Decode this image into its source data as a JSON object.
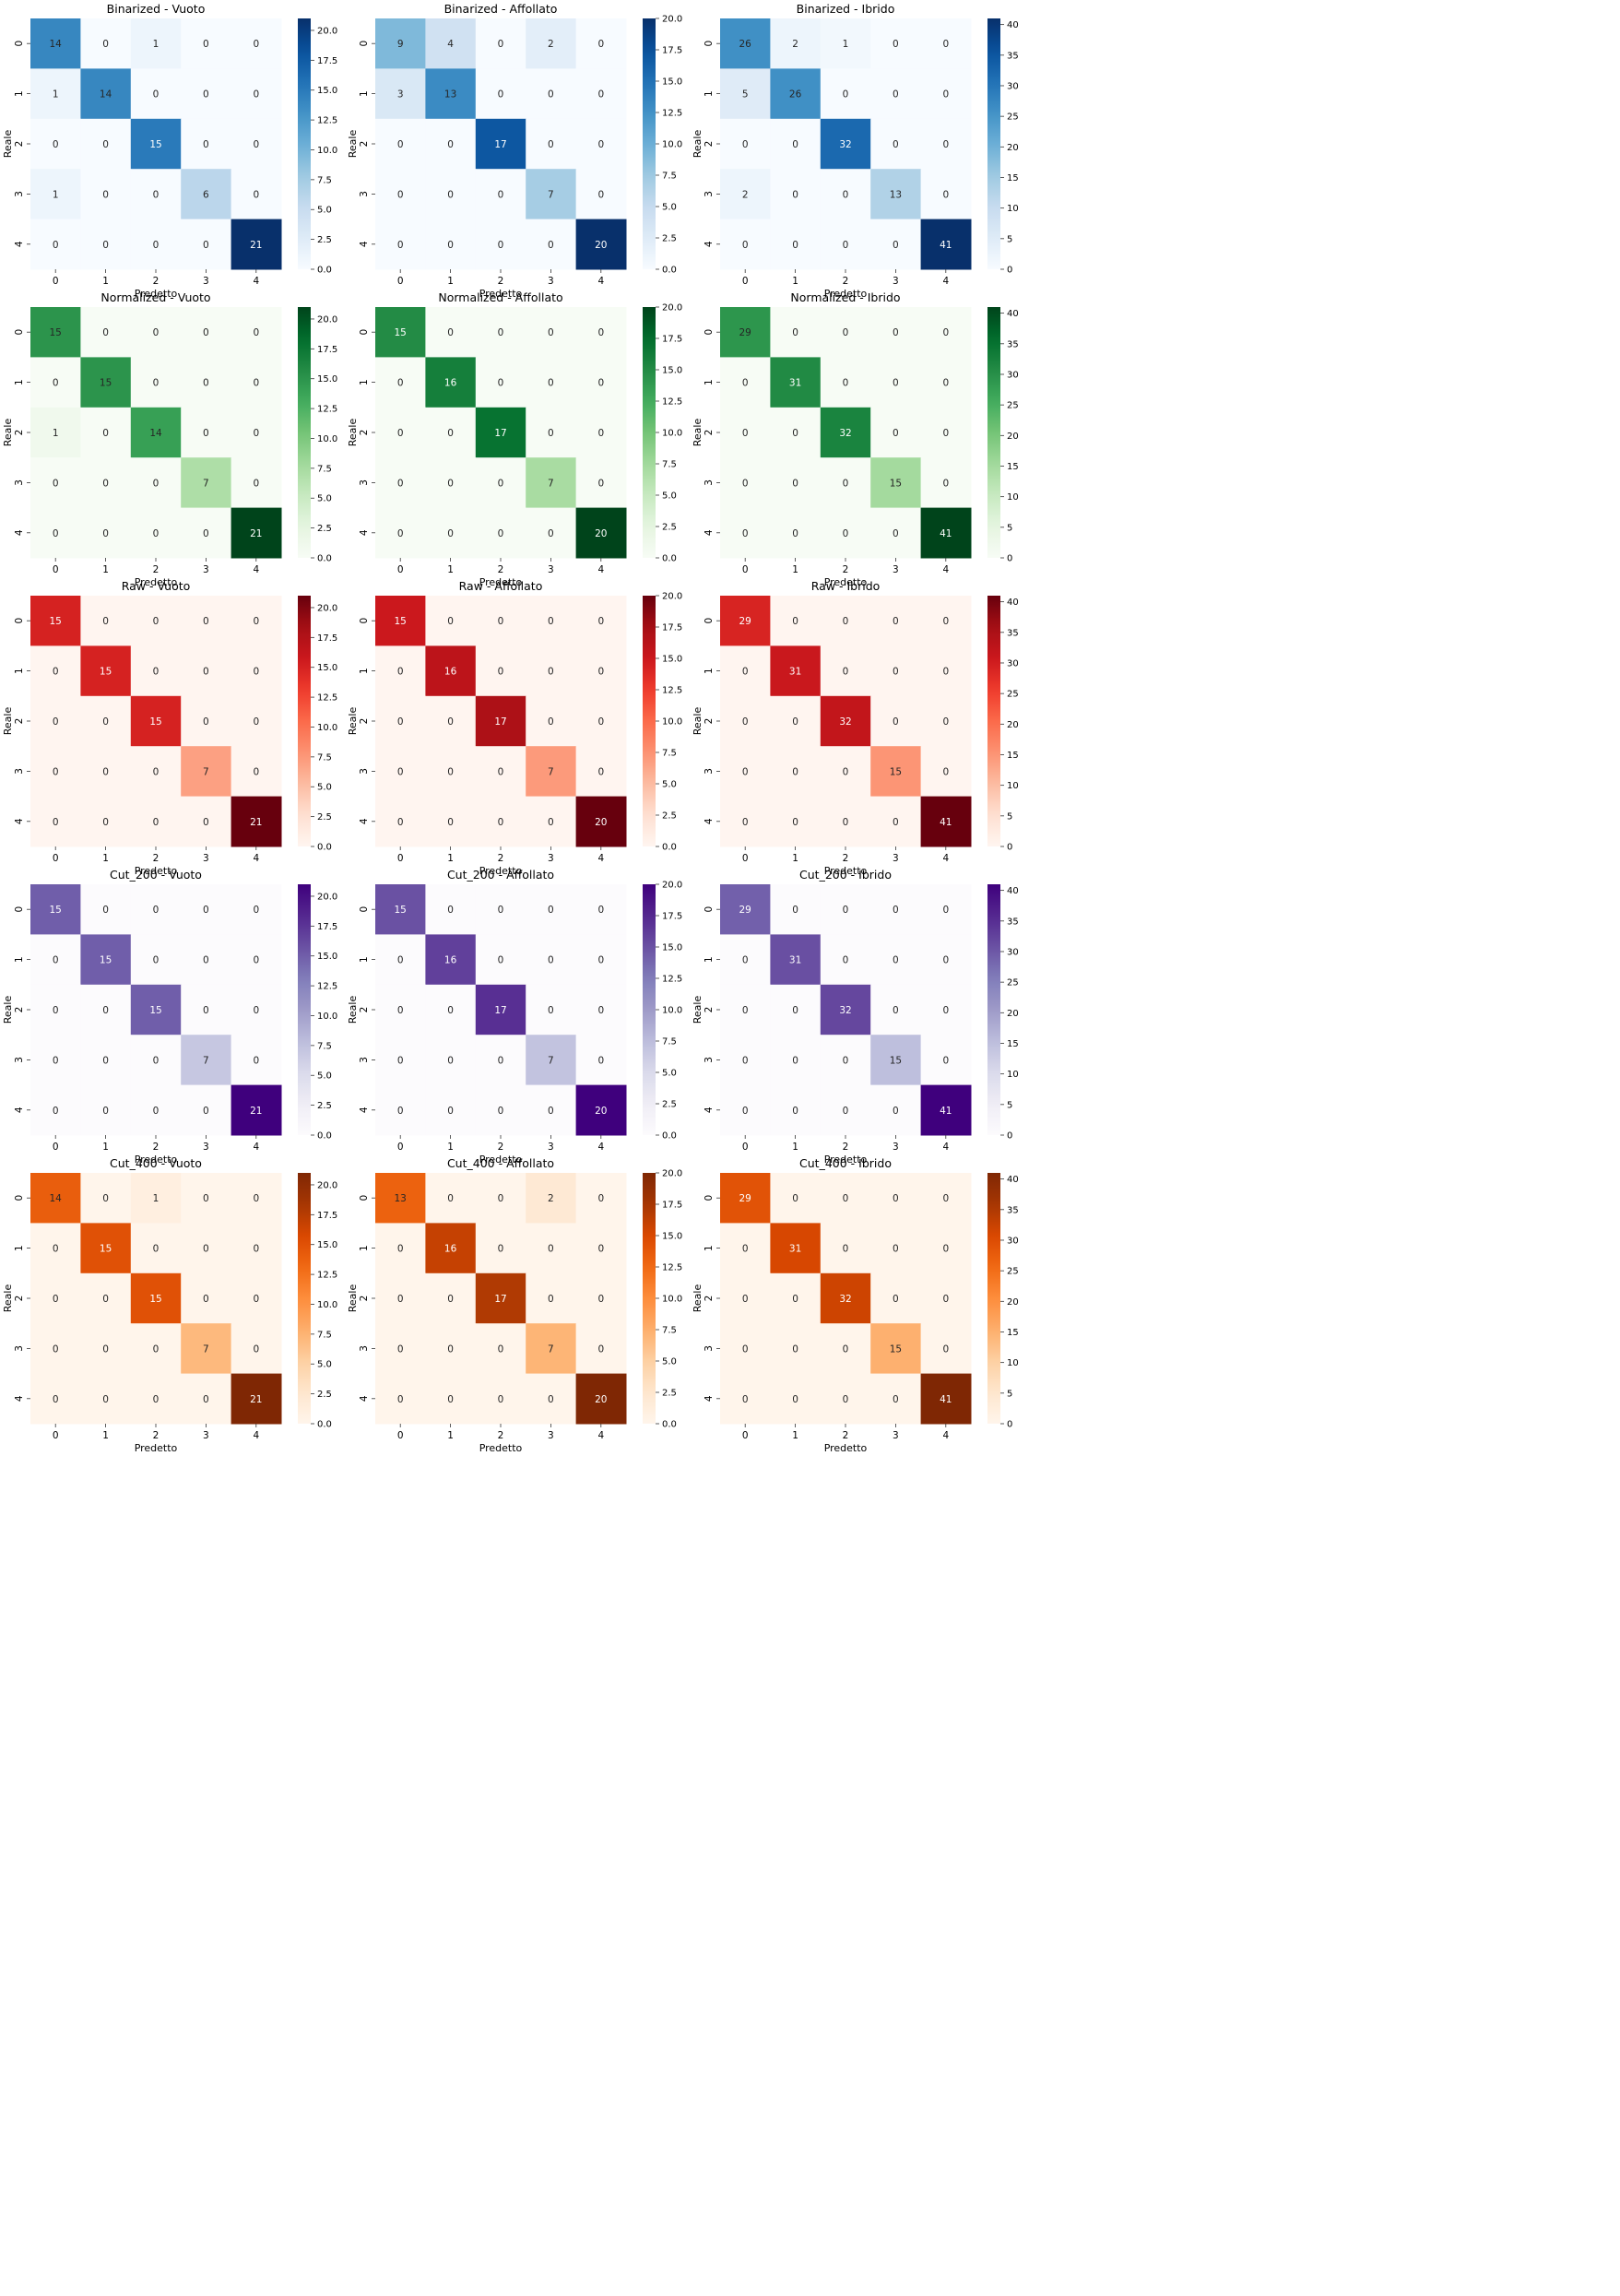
{
  "figure": {
    "xlabel": "Predetto",
    "ylabel": "Reale",
    "class_labels": [
      "0",
      "1",
      "2",
      "3",
      "4"
    ]
  },
  "chart_data": [
    {
      "type": "heatmap",
      "title": "Binarized - Vuoto",
      "colormap": "Blues",
      "vmin": 0,
      "vmax": 21,
      "cbar_ticks": [
        "0.0",
        "2.5",
        "5.0",
        "7.5",
        "10.0",
        "12.5",
        "15.0",
        "17.5",
        "20.0"
      ],
      "matrix": [
        [
          14,
          0,
          1,
          0,
          0
        ],
        [
          1,
          14,
          0,
          0,
          0
        ],
        [
          0,
          0,
          15,
          0,
          0
        ],
        [
          1,
          0,
          0,
          6,
          0
        ],
        [
          0,
          0,
          0,
          0,
          21
        ]
      ]
    },
    {
      "type": "heatmap",
      "title": "Binarized - Affollato",
      "colormap": "Blues",
      "vmin": 0,
      "vmax": 20,
      "cbar_ticks": [
        "0.0",
        "2.5",
        "5.0",
        "7.5",
        "10.0",
        "12.5",
        "15.0",
        "17.5",
        "20.0"
      ],
      "matrix": [
        [
          9,
          4,
          0,
          2,
          0
        ],
        [
          3,
          13,
          0,
          0,
          0
        ],
        [
          0,
          0,
          17,
          0,
          0
        ],
        [
          0,
          0,
          0,
          7,
          0
        ],
        [
          0,
          0,
          0,
          0,
          20
        ]
      ]
    },
    {
      "type": "heatmap",
      "title": "Binarized - Ibrido",
      "colormap": "Blues",
      "vmin": 0,
      "vmax": 41,
      "cbar_ticks": [
        "0",
        "5",
        "10",
        "15",
        "20",
        "25",
        "30",
        "35",
        "40"
      ],
      "matrix": [
        [
          26,
          2,
          1,
          0,
          0
        ],
        [
          5,
          26,
          0,
          0,
          0
        ],
        [
          0,
          0,
          32,
          0,
          0
        ],
        [
          2,
          0,
          0,
          13,
          0
        ],
        [
          0,
          0,
          0,
          0,
          41
        ]
      ]
    },
    {
      "type": "heatmap",
      "title": "Normalized - Vuoto",
      "colormap": "Greens",
      "vmin": 0,
      "vmax": 21,
      "cbar_ticks": [
        "0.0",
        "2.5",
        "5.0",
        "7.5",
        "10.0",
        "12.5",
        "15.0",
        "17.5",
        "20.0"
      ],
      "matrix": [
        [
          15,
          0,
          0,
          0,
          0
        ],
        [
          0,
          15,
          0,
          0,
          0
        ],
        [
          1,
          0,
          14,
          0,
          0
        ],
        [
          0,
          0,
          0,
          7,
          0
        ],
        [
          0,
          0,
          0,
          0,
          21
        ]
      ]
    },
    {
      "type": "heatmap",
      "title": "Normalized - Affollato",
      "colormap": "Greens",
      "vmin": 0,
      "vmax": 20,
      "cbar_ticks": [
        "0.0",
        "2.5",
        "5.0",
        "7.5",
        "10.0",
        "12.5",
        "15.0",
        "17.5",
        "20.0"
      ],
      "matrix": [
        [
          15,
          0,
          0,
          0,
          0
        ],
        [
          0,
          16,
          0,
          0,
          0
        ],
        [
          0,
          0,
          17,
          0,
          0
        ],
        [
          0,
          0,
          0,
          7,
          0
        ],
        [
          0,
          0,
          0,
          0,
          20
        ]
      ]
    },
    {
      "type": "heatmap",
      "title": "Normalized - Ibrido",
      "colormap": "Greens",
      "vmin": 0,
      "vmax": 41,
      "cbar_ticks": [
        "0",
        "5",
        "10",
        "15",
        "20",
        "25",
        "30",
        "35",
        "40"
      ],
      "matrix": [
        [
          29,
          0,
          0,
          0,
          0
        ],
        [
          0,
          31,
          0,
          0,
          0
        ],
        [
          0,
          0,
          32,
          0,
          0
        ],
        [
          0,
          0,
          0,
          15,
          0
        ],
        [
          0,
          0,
          0,
          0,
          41
        ]
      ]
    },
    {
      "type": "heatmap",
      "title": "Raw - Vuoto",
      "colormap": "Reds",
      "vmin": 0,
      "vmax": 21,
      "cbar_ticks": [
        "0.0",
        "2.5",
        "5.0",
        "7.5",
        "10.0",
        "12.5",
        "15.0",
        "17.5",
        "20.0"
      ],
      "matrix": [
        [
          15,
          0,
          0,
          0,
          0
        ],
        [
          0,
          15,
          0,
          0,
          0
        ],
        [
          0,
          0,
          15,
          0,
          0
        ],
        [
          0,
          0,
          0,
          7,
          0
        ],
        [
          0,
          0,
          0,
          0,
          21
        ]
      ]
    },
    {
      "type": "heatmap",
      "title": "Raw - Affollato",
      "colormap": "Reds",
      "vmin": 0,
      "vmax": 20,
      "cbar_ticks": [
        "0.0",
        "2.5",
        "5.0",
        "7.5",
        "10.0",
        "12.5",
        "15.0",
        "17.5",
        "20.0"
      ],
      "matrix": [
        [
          15,
          0,
          0,
          0,
          0
        ],
        [
          0,
          16,
          0,
          0,
          0
        ],
        [
          0,
          0,
          17,
          0,
          0
        ],
        [
          0,
          0,
          0,
          7,
          0
        ],
        [
          0,
          0,
          0,
          0,
          20
        ]
      ]
    },
    {
      "type": "heatmap",
      "title": "Raw - Ibrido",
      "colormap": "Reds",
      "vmin": 0,
      "vmax": 41,
      "cbar_ticks": [
        "0",
        "5",
        "10",
        "15",
        "20",
        "25",
        "30",
        "35",
        "40"
      ],
      "matrix": [
        [
          29,
          0,
          0,
          0,
          0
        ],
        [
          0,
          31,
          0,
          0,
          0
        ],
        [
          0,
          0,
          32,
          0,
          0
        ],
        [
          0,
          0,
          0,
          15,
          0
        ],
        [
          0,
          0,
          0,
          0,
          41
        ]
      ]
    },
    {
      "type": "heatmap",
      "title": "Cut_200 - Vuoto",
      "colormap": "Purples",
      "vmin": 0,
      "vmax": 21,
      "cbar_ticks": [
        "0.0",
        "2.5",
        "5.0",
        "7.5",
        "10.0",
        "12.5",
        "15.0",
        "17.5",
        "20.0"
      ],
      "matrix": [
        [
          15,
          0,
          0,
          0,
          0
        ],
        [
          0,
          15,
          0,
          0,
          0
        ],
        [
          0,
          0,
          15,
          0,
          0
        ],
        [
          0,
          0,
          0,
          7,
          0
        ],
        [
          0,
          0,
          0,
          0,
          21
        ]
      ]
    },
    {
      "type": "heatmap",
      "title": "Cut_200 - Affollato",
      "colormap": "Purples",
      "vmin": 0,
      "vmax": 20,
      "cbar_ticks": [
        "0.0",
        "2.5",
        "5.0",
        "7.5",
        "10.0",
        "12.5",
        "15.0",
        "17.5",
        "20.0"
      ],
      "matrix": [
        [
          15,
          0,
          0,
          0,
          0
        ],
        [
          0,
          16,
          0,
          0,
          0
        ],
        [
          0,
          0,
          17,
          0,
          0
        ],
        [
          0,
          0,
          0,
          7,
          0
        ],
        [
          0,
          0,
          0,
          0,
          20
        ]
      ]
    },
    {
      "type": "heatmap",
      "title": "Cut_200 - Ibrido",
      "colormap": "Purples",
      "vmin": 0,
      "vmax": 41,
      "cbar_ticks": [
        "0",
        "5",
        "10",
        "15",
        "20",
        "25",
        "30",
        "35",
        "40"
      ],
      "matrix": [
        [
          29,
          0,
          0,
          0,
          0
        ],
        [
          0,
          31,
          0,
          0,
          0
        ],
        [
          0,
          0,
          32,
          0,
          0
        ],
        [
          0,
          0,
          0,
          15,
          0
        ],
        [
          0,
          0,
          0,
          0,
          41
        ]
      ]
    },
    {
      "type": "heatmap",
      "title": "Cut_400 - Vuoto",
      "colormap": "Oranges",
      "vmin": 0,
      "vmax": 21,
      "cbar_ticks": [
        "0.0",
        "2.5",
        "5.0",
        "7.5",
        "10.0",
        "12.5",
        "15.0",
        "17.5",
        "20.0"
      ],
      "matrix": [
        [
          14,
          0,
          1,
          0,
          0
        ],
        [
          0,
          15,
          0,
          0,
          0
        ],
        [
          0,
          0,
          15,
          0,
          0
        ],
        [
          0,
          0,
          0,
          7,
          0
        ],
        [
          0,
          0,
          0,
          0,
          21
        ]
      ]
    },
    {
      "type": "heatmap",
      "title": "Cut_400 - Affollato",
      "colormap": "Oranges",
      "vmin": 0,
      "vmax": 20,
      "cbar_ticks": [
        "0.0",
        "2.5",
        "5.0",
        "7.5",
        "10.0",
        "12.5",
        "15.0",
        "17.5",
        "20.0"
      ],
      "matrix": [
        [
          13,
          0,
          0,
          2,
          0
        ],
        [
          0,
          16,
          0,
          0,
          0
        ],
        [
          0,
          0,
          17,
          0,
          0
        ],
        [
          0,
          0,
          0,
          7,
          0
        ],
        [
          0,
          0,
          0,
          0,
          20
        ]
      ]
    },
    {
      "type": "heatmap",
      "title": "Cut_400 - Ibrido",
      "colormap": "Oranges",
      "vmin": 0,
      "vmax": 41,
      "cbar_ticks": [
        "0",
        "5",
        "10",
        "15",
        "20",
        "25",
        "30",
        "35",
        "40"
      ],
      "matrix": [
        [
          29,
          0,
          0,
          0,
          0
        ],
        [
          0,
          31,
          0,
          0,
          0
        ],
        [
          0,
          0,
          32,
          0,
          0
        ],
        [
          0,
          0,
          0,
          15,
          0
        ],
        [
          0,
          0,
          0,
          0,
          41
        ]
      ]
    }
  ]
}
